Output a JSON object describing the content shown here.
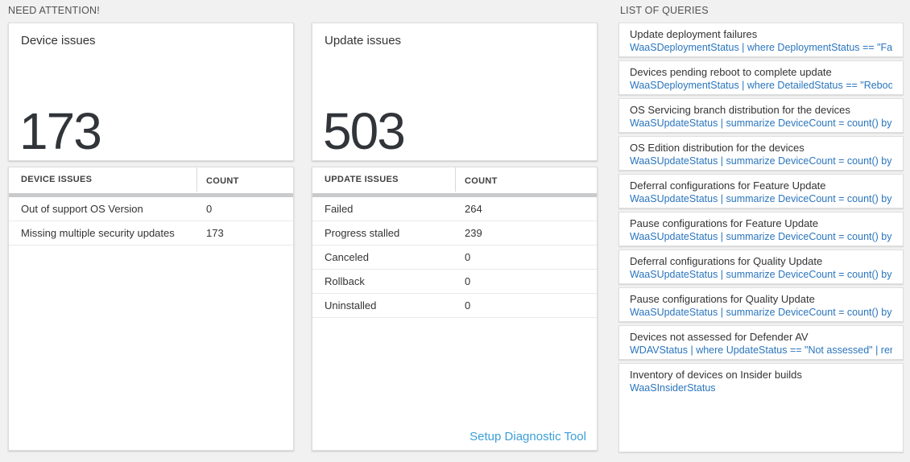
{
  "sections": {
    "need_attention": "NEED ATTENTION!",
    "list_of_queries": "LIST OF QUERIES"
  },
  "device_panel": {
    "title": "Device issues",
    "big_number": "173",
    "table": {
      "headers": [
        "DEVICE ISSUES",
        "COUNT"
      ],
      "rows": [
        {
          "label": "Out of support OS Version",
          "count": "0"
        },
        {
          "label": "Missing multiple security updates",
          "count": "173"
        }
      ]
    }
  },
  "update_panel": {
    "title": "Update issues",
    "big_number": "503",
    "table": {
      "headers": [
        "UPDATE ISSUES",
        "COUNT"
      ],
      "rows": [
        {
          "label": "Failed",
          "count": "264"
        },
        {
          "label": "Progress stalled",
          "count": "239"
        },
        {
          "label": "Canceled",
          "count": "0"
        },
        {
          "label": "Rollback",
          "count": "0"
        },
        {
          "label": "Uninstalled",
          "count": "0"
        }
      ]
    },
    "setup_link": "Setup Diagnostic Tool"
  },
  "queries": {
    "items": [
      {
        "title": "Update deployment failures",
        "query": "WaaSDeploymentStatus | where DeploymentStatus == \"Failed\" |..."
      },
      {
        "title": "Devices pending reboot to complete update",
        "query": "WaaSDeploymentStatus | where DetailedStatus == \"Reboot pend..."
      },
      {
        "title": "OS Servicing branch distribution for the devices",
        "query": "WaaSUpdateStatus | summarize DeviceCount = count() by OSSer..."
      },
      {
        "title": "OS Edition distribution for the devices",
        "query": "WaaSUpdateStatus | summarize DeviceCount = count() by OSEdit..."
      },
      {
        "title": "Deferral configurations for Feature Update",
        "query": "WaaSUpdateStatus | summarize DeviceCount = count() by Featur..."
      },
      {
        "title": "Pause configurations for Feature Update",
        "query": "WaaSUpdateStatus | summarize DeviceCount = count() by Featur..."
      },
      {
        "title": "Deferral configurations for Quality Update",
        "query": "WaaSUpdateStatus | summarize DeviceCount = count() by Qualit..."
      },
      {
        "title": "Pause configurations for Quality Update",
        "query": "WaaSUpdateStatus | summarize DeviceCount = count() by Qualit..."
      },
      {
        "title": "Devices not assessed for Defender AV",
        "query": "WDAVStatus | where UpdateStatus == \"Not assessed\" | render ta..."
      },
      {
        "title": "Inventory of devices on Insider builds",
        "query": "WaaSInsiderStatus"
      }
    ]
  },
  "colors": {
    "background": "#f1f1f2",
    "query_link_blue": "#2a75bd",
    "setup_link_blue": "#3c9fd9",
    "big_number_dark": "#31353a",
    "scroll_track_gray": "#c8cacc"
  }
}
